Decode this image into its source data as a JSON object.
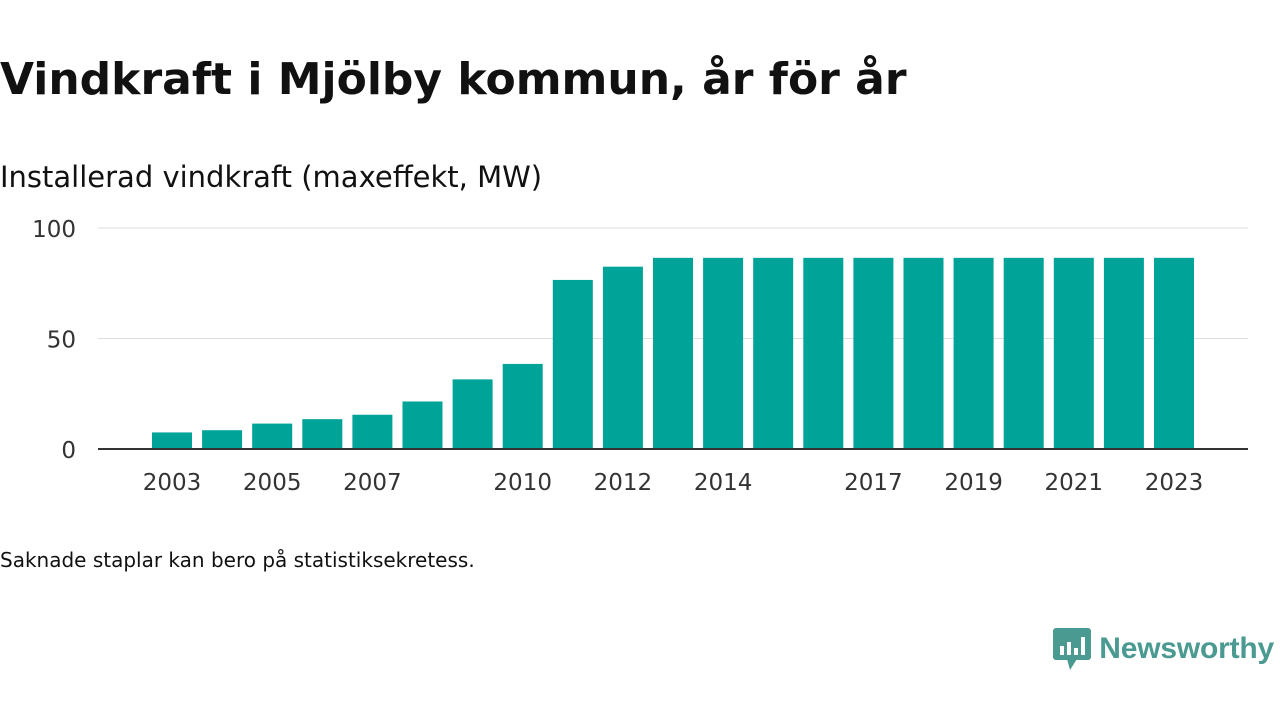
{
  "header": {
    "title": "Vindkraft i Mjölby kommun, år för år"
  },
  "footer": {
    "note": "Saknade staplar kan bero på statistiksekretess.",
    "brand_name": "Newsworthy",
    "brand_icon": "bar-chart-speech-bubble-icon"
  },
  "colors": {
    "bar": "#00a398",
    "axis": "#333333",
    "grid": "#dddddd",
    "brand": "#4a9a91"
  },
  "chart_data": {
    "type": "bar",
    "title": "Installerad vindkraft (maxeffekt, MW)",
    "categories": [
      "2003",
      "2004",
      "2005",
      "2006",
      "2007",
      "2008",
      "2009",
      "2010",
      "2011",
      "2012",
      "2013",
      "2014",
      "2015",
      "2016",
      "2017",
      "2018",
      "2019",
      "2020",
      "2021",
      "2022",
      "2023"
    ],
    "values": [
      7.5,
      8.5,
      11.5,
      13.5,
      15.5,
      21.5,
      31.5,
      38.5,
      76.5,
      82.5,
      86.5,
      86.5,
      86.5,
      86.5,
      86.5,
      86.5,
      86.5,
      86.5,
      86.5,
      86.5,
      86.5
    ],
    "tick_labels_x": [
      "2003",
      "2005",
      "2007",
      "2010",
      "2012",
      "2014",
      "2017",
      "2019",
      "2021",
      "2023"
    ],
    "yticks": [
      0,
      50,
      100
    ],
    "ylim": [
      0,
      100
    ],
    "xlabel": "",
    "ylabel": "",
    "grid": true,
    "legend": "none"
  }
}
